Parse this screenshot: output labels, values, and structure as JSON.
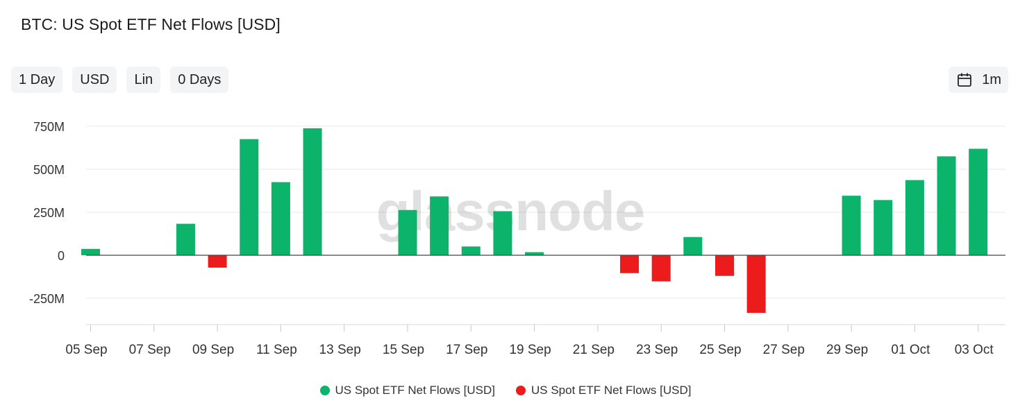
{
  "title": "BTC: US Spot ETF Net Flows [USD]",
  "controls": [
    "1 Day",
    "USD",
    "Lin",
    "0 Days"
  ],
  "range": {
    "label": "1m",
    "icon": "calendar-icon"
  },
  "watermark": "glassnode",
  "colors": {
    "positive": "#0bb36b",
    "negative": "#ec1c1c",
    "grid": "#e6e8eb",
    "axis": "#9aa0a6"
  },
  "legend": [
    {
      "label": "US Spot ETF Net Flows [USD]",
      "color": "#0bb36b"
    },
    {
      "label": "US Spot ETF Net Flows [USD]",
      "color": "#ec1c1c"
    }
  ],
  "chart_data": {
    "type": "bar",
    "title": "BTC: US Spot ETF Net Flows [USD]",
    "unit": "USD",
    "ylim": [
      -400000000,
      800000000
    ],
    "yticks": [
      -250000000,
      0,
      250000000,
      500000000,
      750000000
    ],
    "ytick_labels": [
      "-250M",
      "0",
      "250M",
      "500M",
      "750M"
    ],
    "xtick_labels": [
      "05 Sep",
      "07 Sep",
      "09 Sep",
      "11 Sep",
      "13 Sep",
      "15 Sep",
      "17 Sep",
      "19 Sep",
      "21 Sep",
      "23 Sep",
      "25 Sep",
      "27 Sep",
      "29 Sep",
      "01 Oct",
      "03 Oct"
    ],
    "grid": true,
    "legend_position": "bottom-center",
    "categories": [
      "05 Sep",
      "06 Sep",
      "07 Sep",
      "08 Sep",
      "09 Sep",
      "10 Sep",
      "11 Sep",
      "12 Sep",
      "13 Sep",
      "14 Sep",
      "15 Sep",
      "16 Sep",
      "17 Sep",
      "18 Sep",
      "19 Sep",
      "20 Sep",
      "21 Sep",
      "22 Sep",
      "23 Sep",
      "24 Sep",
      "25 Sep",
      "26 Sep",
      "27 Sep",
      "28 Sep",
      "29 Sep",
      "30 Sep",
      "01 Oct",
      "02 Oct",
      "03 Oct"
    ],
    "series": [
      {
        "name": "US Spot ETF Net Flows [USD]",
        "values": [
          37000000,
          0,
          0,
          183000000,
          -72000000,
          675000000,
          425000000,
          738000000,
          0,
          0,
          263000000,
          342000000,
          51000000,
          256000000,
          18000000,
          0,
          0,
          -104000000,
          -152000000,
          106000000,
          -120000000,
          -335000000,
          0,
          0,
          346000000,
          321000000,
          437000000,
          575000000,
          619000000
        ]
      }
    ]
  }
}
